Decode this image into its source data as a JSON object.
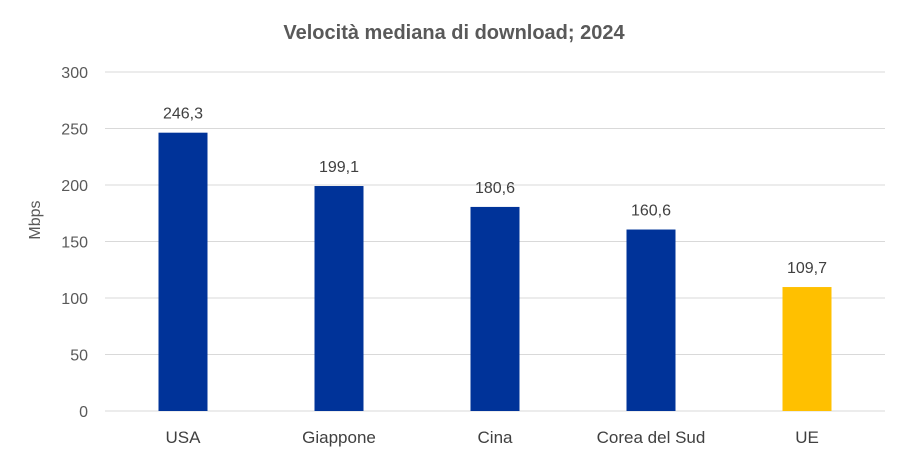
{
  "chart_data": {
    "type": "bar",
    "title": "Velocità mediana di download; 2024",
    "xlabel": "",
    "ylabel": "Mbps",
    "categories": [
      "USA",
      "Giappone",
      "Cina",
      "Corea del Sud",
      "UE"
    ],
    "values": [
      246.3,
      199.1,
      180.6,
      160.6,
      109.7
    ],
    "data_labels": [
      "246,3",
      "199,1",
      "180,6",
      "160,6",
      "109,7"
    ],
    "bar_colors": [
      "#003399",
      "#003399",
      "#003399",
      "#003399",
      "#FFC000"
    ],
    "ylim": [
      0,
      300
    ],
    "yticks": [
      0,
      50,
      100,
      150,
      200,
      250,
      300
    ],
    "grid": true,
    "legend": "none"
  }
}
